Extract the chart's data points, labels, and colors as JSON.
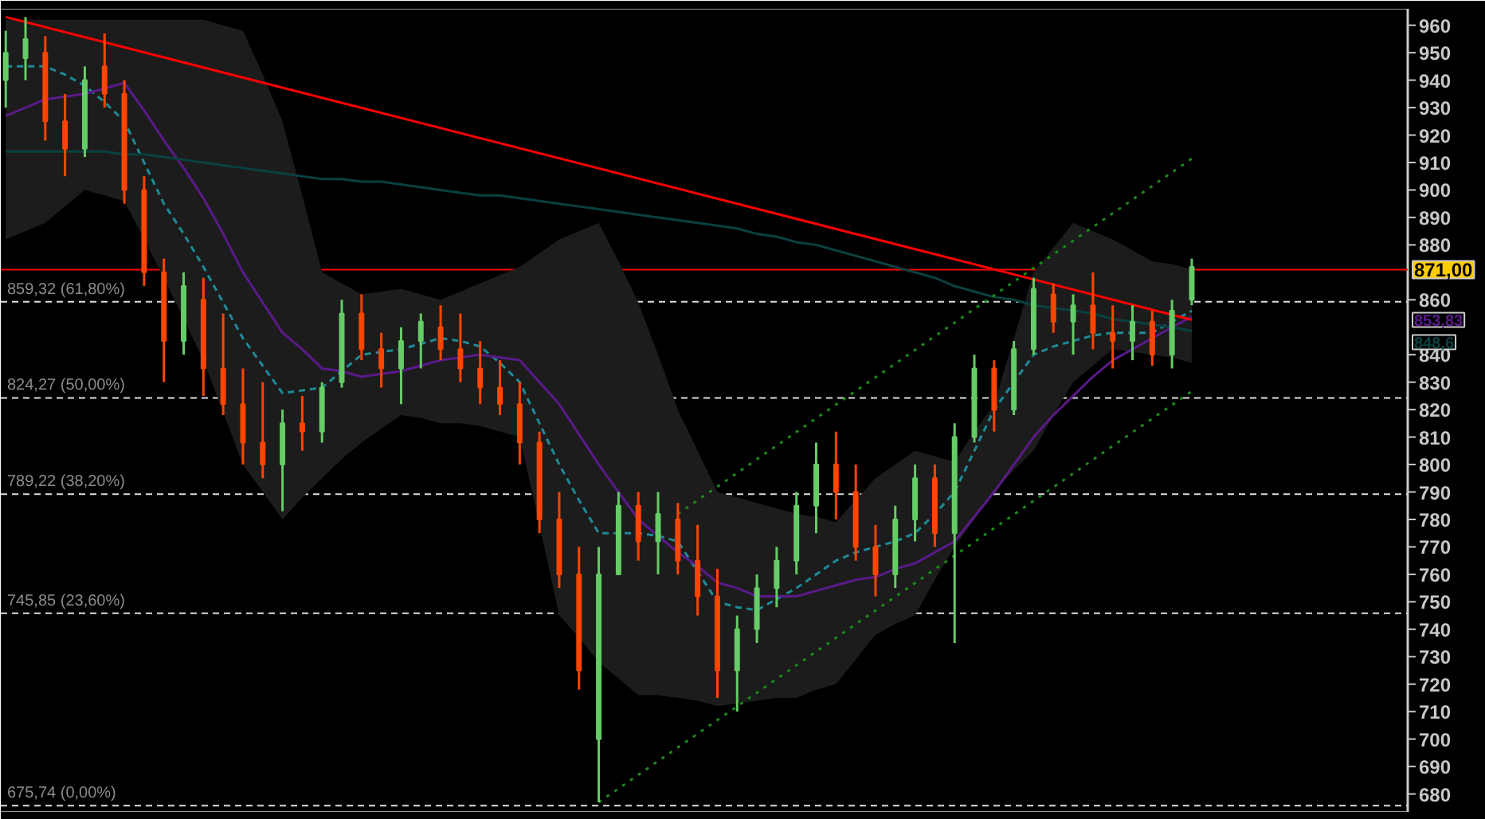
{
  "chart_data": {
    "type": "candlestick",
    "tick_labels": "y",
    "grid": false,
    "ylim": [
      673.5,
      966
    ],
    "yticks": [
      680,
      690,
      700,
      710,
      720,
      730,
      740,
      750,
      760,
      770,
      780,
      790,
      800,
      810,
      820,
      830,
      840,
      860,
      880,
      890,
      900,
      910,
      920,
      930,
      940,
      950,
      960
    ],
    "categories": [
      null,
      null,
      null,
      null,
      null,
      null,
      null,
      null,
      null,
      null,
      null,
      null,
      null,
      null,
      null,
      null,
      null,
      null,
      null,
      null,
      null,
      null,
      null,
      null,
      null,
      null,
      null,
      null,
      null,
      null,
      null,
      null,
      null,
      null,
      null,
      null,
      null,
      null,
      null,
      null,
      null,
      null,
      null,
      null,
      null,
      null,
      null,
      null,
      null,
      null,
      null,
      null,
      null,
      null,
      null,
      null,
      null,
      null,
      null,
      null,
      null
    ],
    "ohlc": [
      [
        940,
        958,
        930,
        950
      ],
      [
        948,
        963,
        940,
        955
      ],
      [
        950,
        956,
        918,
        925
      ],
      [
        925,
        935,
        905,
        915
      ],
      [
        915,
        945,
        912,
        940
      ],
      [
        945,
        957,
        930,
        935
      ],
      [
        935,
        940,
        895,
        900
      ],
      [
        900,
        905,
        865,
        870
      ],
      [
        870,
        875,
        830,
        845
      ],
      [
        845,
        870,
        840,
        865
      ],
      [
        860,
        868,
        825,
        835
      ],
      [
        835,
        855,
        818,
        822
      ],
      [
        822,
        835,
        800,
        808
      ],
      [
        808,
        830,
        795,
        800
      ],
      [
        800,
        820,
        783,
        815
      ],
      [
        815,
        825,
        805,
        812
      ],
      [
        812,
        830,
        808,
        828
      ],
      [
        830,
        860,
        828,
        855
      ],
      [
        855,
        862,
        838,
        842
      ],
      [
        842,
        848,
        828,
        835
      ],
      [
        835,
        850,
        822,
        845
      ],
      [
        845,
        855,
        835,
        852
      ],
      [
        850,
        858,
        838,
        842
      ],
      [
        842,
        855,
        830,
        835
      ],
      [
        835,
        845,
        822,
        828
      ],
      [
        828,
        838,
        818,
        822
      ],
      [
        822,
        830,
        800,
        808
      ],
      [
        808,
        812,
        775,
        780
      ],
      [
        780,
        790,
        755,
        760
      ],
      [
        760,
        770,
        718,
        725
      ],
      [
        700,
        770,
        677,
        760
      ],
      [
        760,
        790,
        760,
        785
      ],
      [
        785,
        790,
        765,
        772
      ],
      [
        772,
        790,
        760,
        782
      ],
      [
        780,
        786,
        760,
        765
      ],
      [
        765,
        778,
        745,
        752
      ],
      [
        752,
        762,
        715,
        725
      ],
      [
        725,
        745,
        710,
        740
      ],
      [
        740,
        760,
        735,
        755
      ],
      [
        755,
        770,
        748,
        765
      ],
      [
        765,
        790,
        760,
        785
      ],
      [
        785,
        808,
        775,
        800
      ],
      [
        800,
        812,
        780,
        790
      ],
      [
        790,
        800,
        765,
        770
      ],
      [
        770,
        778,
        752,
        760
      ],
      [
        760,
        785,
        755,
        780
      ],
      [
        780,
        800,
        772,
        795
      ],
      [
        795,
        800,
        770,
        775
      ],
      [
        775,
        815,
        735,
        810
      ],
      [
        810,
        840,
        808,
        835
      ],
      [
        835,
        838,
        812,
        820
      ],
      [
        820,
        845,
        818,
        842
      ],
      [
        842,
        868,
        840,
        864
      ],
      [
        862,
        866,
        848,
        852
      ],
      [
        852,
        862,
        840,
        858
      ],
      [
        858,
        870,
        842,
        848
      ],
      [
        848,
        858,
        835,
        845
      ],
      [
        845,
        858,
        838,
        852
      ],
      [
        852,
        856,
        836,
        840
      ],
      [
        840,
        860,
        835,
        856
      ],
      [
        860,
        875,
        858,
        872
      ]
    ],
    "colors": [
      "#66cc66",
      "#66cc66",
      "#ff4500",
      "#ff4500",
      "#66cc66",
      "#ff4500",
      "#ff4500",
      "#ff4500",
      "#ff4500",
      "#66cc66",
      "#ff4500",
      "#ff4500",
      "#ff4500",
      "#ff4500",
      "#66cc66",
      "#ff4500",
      "#66cc66",
      "#66cc66",
      "#ff4500",
      "#ff4500",
      "#66cc66",
      "#66cc66",
      "#ff4500",
      "#ff4500",
      "#ff4500",
      "#ff4500",
      "#ff4500",
      "#ff4500",
      "#ff4500",
      "#ff4500",
      "#66cc66",
      "#66cc66",
      "#ff4500",
      "#66cc66",
      "#ff4500",
      "#ff4500",
      "#ff4500",
      "#66cc66",
      "#66cc66",
      "#66cc66",
      "#66cc66",
      "#66cc66",
      "#ff4500",
      "#ff4500",
      "#ff4500",
      "#66cc66",
      "#66cc66",
      "#ff4500",
      "#66cc66",
      "#66cc66",
      "#ff4500",
      "#66cc66",
      "#66cc66",
      "#ff4500",
      "#66cc66",
      "#ff4500",
      "#ff4500",
      "#66cc66",
      "#ff4500",
      "#66cc66",
      "#66cc66"
    ],
    "series": [
      {
        "type": "line",
        "color": "#1f8a96",
        "line_style": "dashed",
        "values": [
          945,
          945,
          945,
          942,
          938,
          932,
          925,
          910,
          895,
          884,
          872,
          859,
          846,
          836,
          826,
          827,
          828,
          834,
          840,
          841,
          842,
          844,
          846,
          845,
          843,
          837,
          830,
          815,
          800,
          787,
          775,
          775,
          775,
          774,
          772,
          761,
          750,
          748,
          747,
          751,
          755,
          760,
          765,
          768,
          770,
          772,
          775,
          782,
          790,
          805,
          820,
          830,
          840,
          843,
          845,
          847,
          848,
          848,
          848,
          852,
          856
        ],
        "lower": [
          882,
          885,
          888,
          894,
          900,
          898,
          896,
          882,
          868,
          853,
          838,
          819,
          800,
          790,
          780,
          788,
          795,
          802,
          808,
          813,
          818,
          817,
          815,
          815,
          814,
          812,
          810,
          778,
          745,
          737,
          728,
          722,
          716,
          716,
          715,
          714,
          712,
          713,
          714,
          715,
          715,
          718,
          720,
          729,
          738,
          742,
          745,
          758,
          770,
          780,
          790,
          798,
          805,
          818,
          830,
          836,
          842,
          841,
          840,
          839,
          837
        ],
        "upper": [
          962,
          962,
          962,
          962,
          962,
          962,
          962,
          962,
          962,
          962,
          962,
          960,
          958,
          942,
          925,
          898,
          870,
          866,
          862,
          863,
          864,
          862,
          860,
          863,
          866,
          869,
          872,
          877,
          882,
          885,
          888,
          874,
          859,
          840,
          820,
          805,
          790,
          788,
          786,
          784,
          782,
          781,
          779,
          787,
          795,
          800,
          805,
          803,
          801,
          812,
          822,
          846,
          870,
          879,
          888,
          885,
          882,
          878,
          874,
          873,
          871
        ]
      },
      {
        "type": "line",
        "color": "#5a1a8a",
        "values": [
          927,
          930,
          933,
          934,
          935,
          937,
          939,
          929,
          918,
          908,
          897,
          884,
          870,
          859,
          848,
          842,
          835,
          834,
          832,
          833,
          834,
          836,
          838,
          839,
          840,
          839,
          838,
          830,
          822,
          811,
          800,
          790,
          780,
          774,
          768,
          763,
          757,
          755,
          752,
          752,
          752,
          754,
          756,
          758,
          759,
          762,
          764,
          768,
          772,
          781,
          790,
          800,
          810,
          818,
          825,
          832,
          838,
          842,
          846,
          850,
          853.83
        ]
      },
      {
        "type": "line",
        "color": "#0a4040",
        "values": [
          914,
          914,
          914,
          914,
          914,
          914,
          913,
          913,
          912,
          911,
          910,
          909,
          908,
          907,
          906,
          905,
          904,
          904,
          903,
          903,
          902,
          901,
          900,
          899,
          898,
          898,
          897,
          896,
          895,
          894,
          893,
          892,
          891,
          890,
          889,
          888,
          887,
          886,
          884,
          883,
          881,
          880,
          878,
          876,
          874,
          872,
          870,
          868,
          865,
          863,
          861,
          860,
          858,
          857,
          856,
          855,
          853,
          852,
          851,
          850,
          848.6
        ]
      },
      {
        "type": "line",
        "color": "#ff0000",
        "values": [
          963,
          null,
          null,
          null,
          null,
          null,
          null,
          null,
          null,
          null,
          null,
          null,
          null,
          null,
          null,
          null,
          null,
          null,
          null,
          null,
          null,
          null,
          null,
          null,
          null,
          null,
          null,
          null,
          null,
          null,
          null,
          null,
          null,
          null,
          null,
          null,
          null,
          null,
          null,
          null,
          null,
          null,
          null,
          null,
          null,
          null,
          null,
          null,
          null,
          null,
          null,
          null,
          null,
          null,
          null,
          null,
          null,
          null,
          null,
          null,
          852.7
        ]
      },
      {
        "type": "line",
        "color": "#1a8a1a",
        "line_style": "dotted",
        "values": [
          null,
          null,
          null,
          null,
          null,
          null,
          null,
          null,
          null,
          null,
          null,
          null,
          null,
          null,
          null,
          null,
          null,
          null,
          null,
          null,
          null,
          null,
          null,
          null,
          null,
          null,
          null,
          null,
          null,
          null,
          677,
          null,
          null,
          null,
          null,
          null,
          null,
          null,
          null,
          null,
          null,
          null,
          null,
          null,
          null,
          null,
          null,
          null,
          null,
          null,
          null,
          null,
          null,
          null,
          null,
          null,
          null,
          null,
          null,
          null,
          826.7
        ]
      },
      {
        "type": "line",
        "color": "#1a8a1a",
        "line_style": "dotted",
        "values": [
          null,
          null,
          null,
          null,
          null,
          null,
          null,
          null,
          null,
          null,
          null,
          null,
          null,
          null,
          null,
          null,
          null,
          null,
          null,
          null,
          null,
          null,
          null,
          null,
          null,
          null,
          null,
          null,
          null,
          null,
          null,
          null,
          null,
          null,
          782,
          null,
          null,
          null,
          null,
          null,
          null,
          null,
          null,
          null,
          null,
          null,
          null,
          null,
          null,
          null,
          null,
          null,
          null,
          null,
          null,
          null,
          null,
          null,
          null,
          null,
          911.4
        ]
      }
    ],
    "ref_lines": [
      {
        "axis": "y",
        "value": 871,
        "label": "871,00",
        "color": "#ff0000",
        "line_style": "solid"
      },
      {
        "axis": "y",
        "value": 859.32,
        "label": "859,32 (61,80%)",
        "color": "#dddddd",
        "line_style": "dashed"
      },
      {
        "axis": "y",
        "value": 824.27,
        "label": "824,27 (50,00%)",
        "color": "#dddddd",
        "line_style": "dashed"
      },
      {
        "axis": "y",
        "value": 789.22,
        "label": "789,22 (38,20%)",
        "color": "#dddddd",
        "line_style": "dashed"
      },
      {
        "axis": "y",
        "value": 745.85,
        "label": "745,85 (23,60%)",
        "color": "#dddddd",
        "line_style": "dashed"
      },
      {
        "axis": "y",
        "value": 675.74,
        "label": "675,74 (0,00%)",
        "color": "#dddddd",
        "line_style": "dashed"
      }
    ],
    "annotations": [
      "853,83",
      "848,6"
    ]
  }
}
